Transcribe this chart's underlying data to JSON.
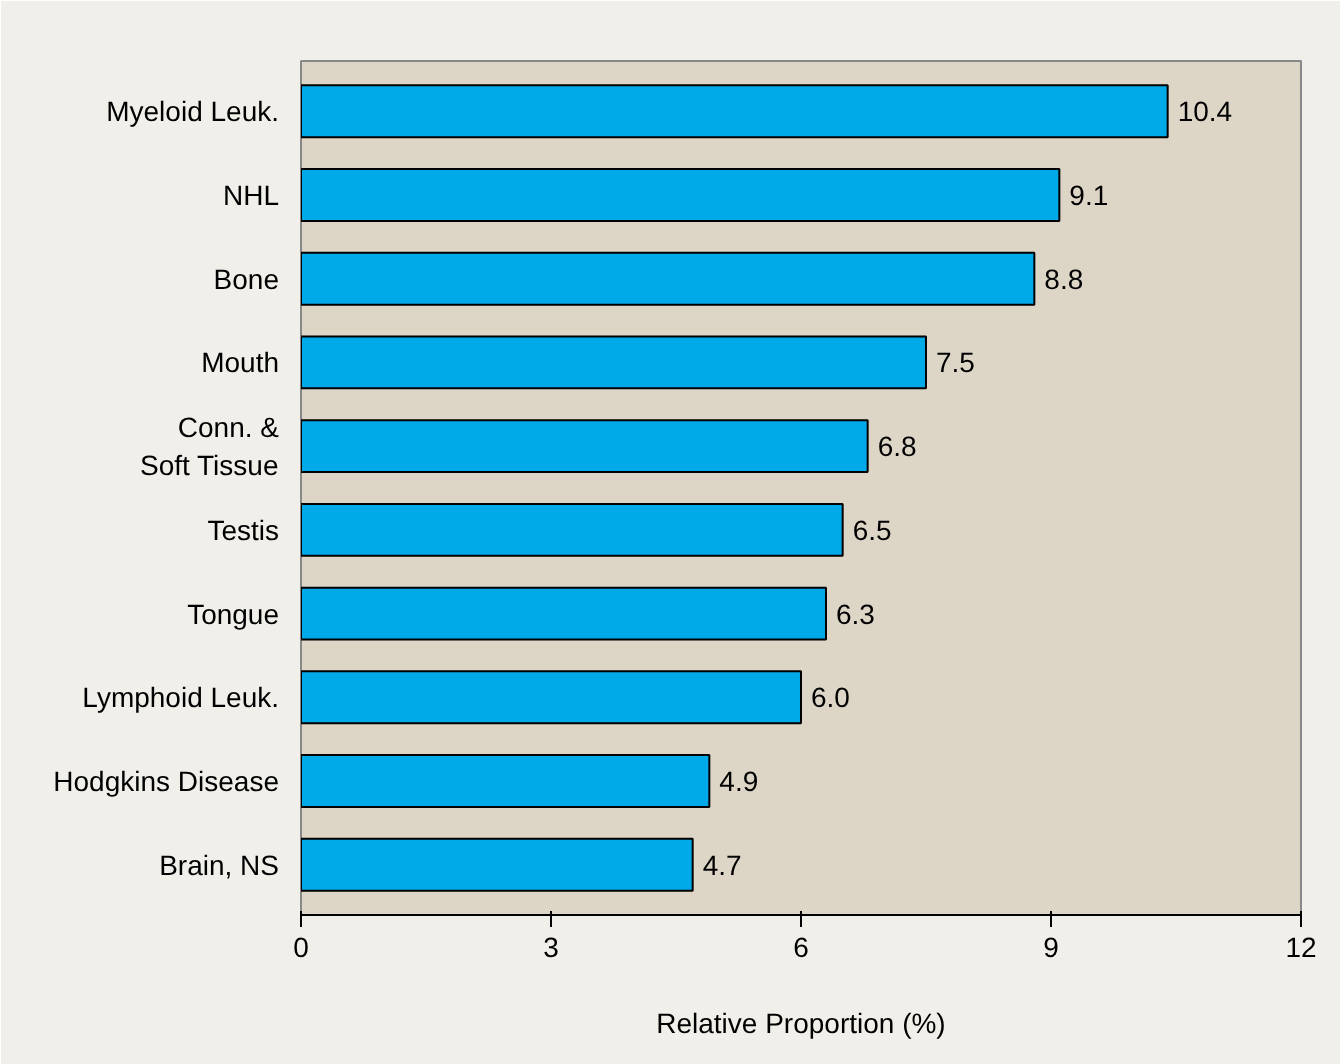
{
  "chart_data": {
    "type": "bar",
    "orientation": "horizontal",
    "categories": [
      "Myeloid Leuk.",
      "NHL",
      "Bone",
      "Mouth",
      "Conn. &\nSoft Tissue",
      "Testis",
      "Tongue",
      "Lymphoid Leuk.",
      "Hodgkins Disease",
      "Brain, NS"
    ],
    "values": [
      10.4,
      9.1,
      8.8,
      7.5,
      6.8,
      6.5,
      6.3,
      6.0,
      4.9,
      4.7
    ],
    "color": "#00a9e8",
    "xlabel": "Relative Proportion (%)",
    "xlim": [
      0,
      12
    ],
    "xticks": [
      0,
      3,
      6,
      9,
      12
    ],
    "value_labels": [
      "10.4",
      "9.1",
      "8.8",
      "7.5",
      "6.8",
      "6.5",
      "6.3",
      "6.0",
      "4.9",
      "4.7"
    ],
    "grid": false
  }
}
